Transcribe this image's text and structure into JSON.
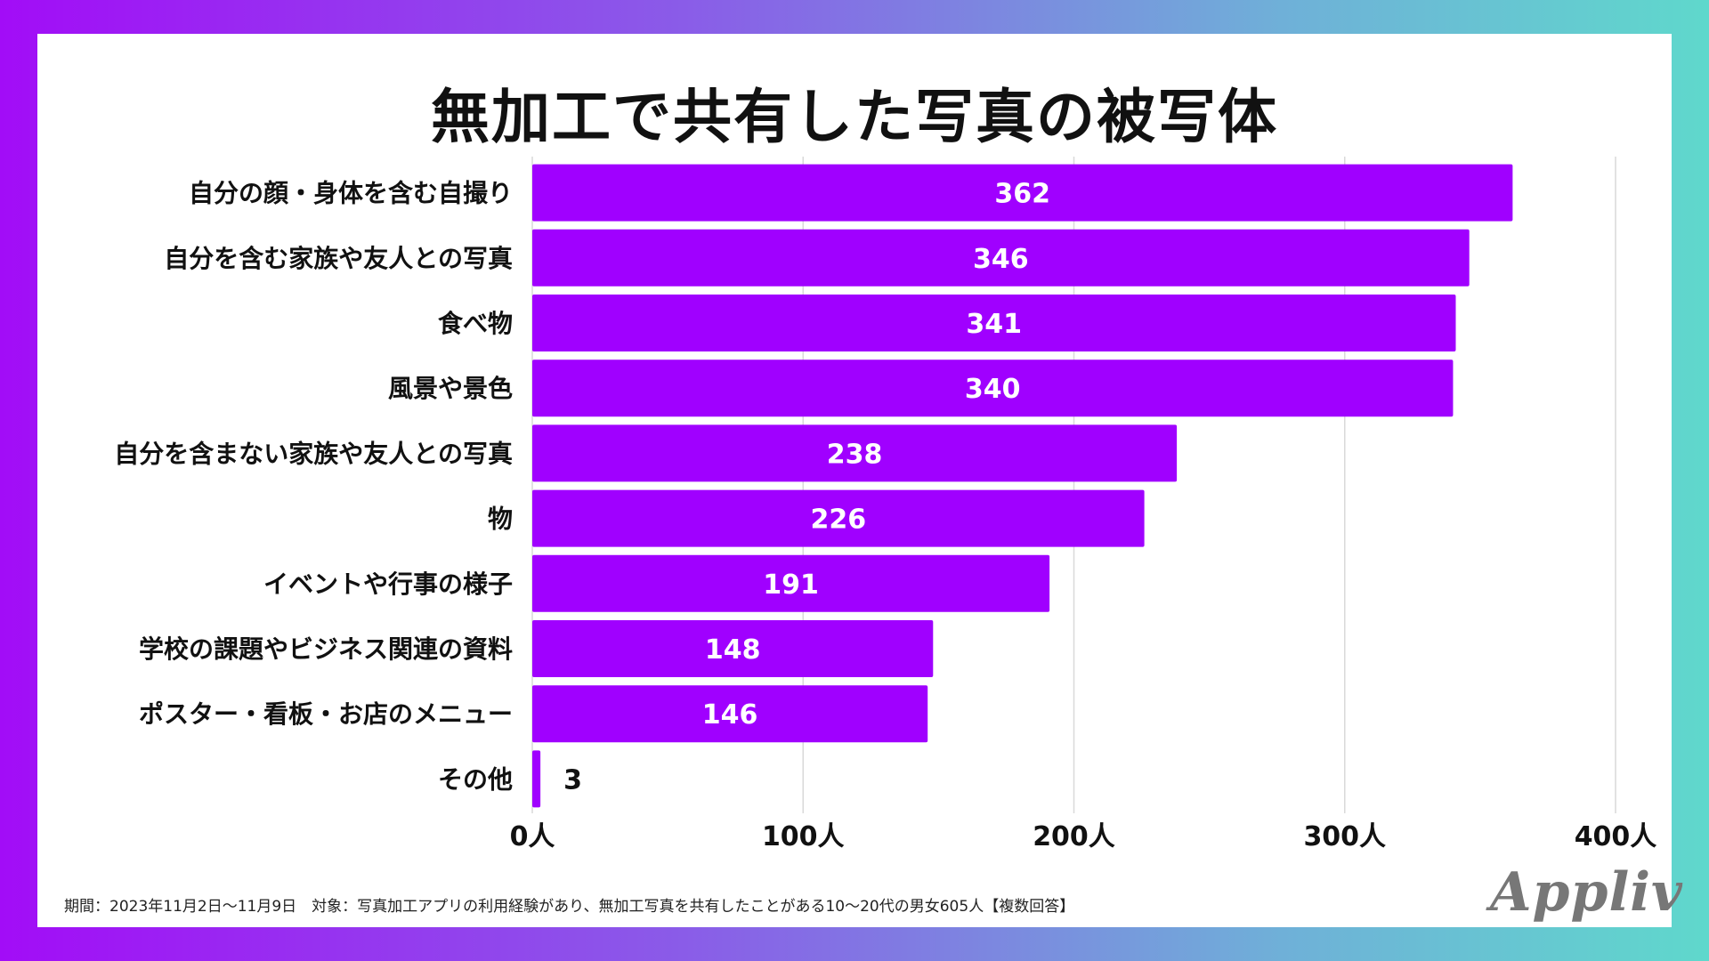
{
  "title": "無加工で共有した写真の被写体",
  "footnote": "期間：2023年11月2日〜11月9日　対象：写真加工アプリの利用経験があり、無加工写真を共有したことがある10〜20代の男女605人【複数回答】",
  "brand": "Appliv",
  "colors": {
    "bar": "#a000ff",
    "grid": "#d9d9d9",
    "label": "#111111",
    "value_inside": "#ffffff",
    "value_outside": "#111111"
  },
  "chart_data": {
    "type": "bar",
    "orientation": "horizontal",
    "categories": [
      "自分の顔・身体を含む自撮り",
      "自分を含む家族や友人との写真",
      "食べ物",
      "風景や景色",
      "自分を含まない家族や友人との写真",
      "物",
      "イベントや行事の様子",
      "学校の課題やビジネス関連の資料",
      "ポスター・看板・お店のメニュー",
      "その他"
    ],
    "values": [
      362,
      346,
      341,
      340,
      238,
      226,
      191,
      148,
      146,
      3
    ],
    "xlim": [
      0,
      400
    ],
    "xticks": [
      0,
      100,
      200,
      300,
      400
    ],
    "xtick_labels": [
      "0人",
      "100人",
      "200人",
      "300人",
      "400人"
    ],
    "title": "無加工で共有した写真の被写体",
    "xlabel": "",
    "ylabel": "",
    "grid": true
  }
}
